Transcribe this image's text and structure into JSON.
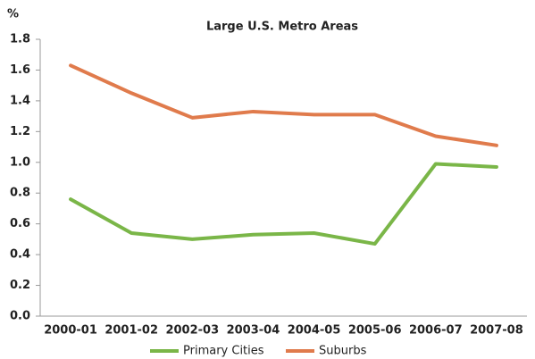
{
  "chart_data": {
    "type": "line",
    "title": "Large U.S. Metro Areas",
    "y_label": "%",
    "categories": [
      "2000-01",
      "2001-02",
      "2002-03",
      "2003-04",
      "2004-05",
      "2005-06",
      "2006-07",
      "2007-08"
    ],
    "series": [
      {
        "name": "Primary Cities",
        "color": "#7ab648",
        "values": [
          0.76,
          0.54,
          0.5,
          0.53,
          0.54,
          0.47,
          0.99,
          0.97
        ]
      },
      {
        "name": "Suburbs",
        "color": "#e07b4c",
        "values": [
          1.63,
          1.45,
          1.29,
          1.33,
          1.31,
          1.31,
          1.17,
          1.11
        ]
      }
    ],
    "ylim": [
      0,
      1.8
    ],
    "yticks": [
      {
        "value": 0,
        "label": "0.0"
      },
      0.2,
      0.4,
      0.6,
      0.8,
      {
        "value": 1,
        "label": "1.0"
      },
      1.2,
      1.4,
      1.6,
      1.8
    ],
    "grid": false,
    "legend": "bottom"
  }
}
